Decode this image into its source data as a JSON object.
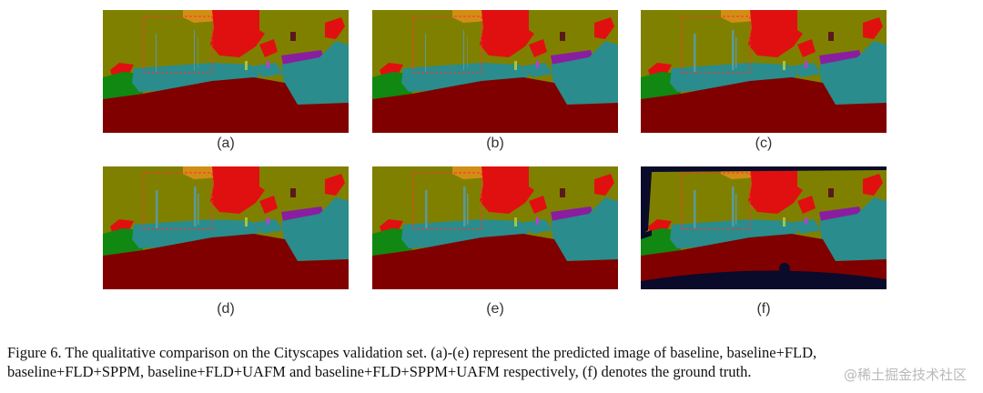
{
  "figure": {
    "panels": [
      {
        "label": "(a)"
      },
      {
        "label": "(b)"
      },
      {
        "label": "(c)"
      },
      {
        "label": "(d)"
      },
      {
        "label": "(e)"
      },
      {
        "label": "(f)"
      }
    ],
    "caption_line1": "Figure 6.  The qualitative comparison on the Cityscapes validation set. (a)-(e) represent the predicted image of baseline, baseline+FLD,",
    "caption_line2": "baseline+FLD+SPPM, baseline+FLD+UAFM and baseline+FLD+SPPM+UAFM respectively, (f) denotes the ground truth.",
    "watermark": "@稀土掘金技术社区"
  },
  "colors": {
    "vegetation": "#808000",
    "road": "#800000",
    "car": "#2a8c8c",
    "building": "#e01010",
    "sidewalk": "#118811",
    "sky": "#d28e14",
    "pole": "#5a9a9a",
    "truck": "#8a1ea0",
    "highlight_box": "#ff3030",
    "void": "#0a0a2a"
  }
}
